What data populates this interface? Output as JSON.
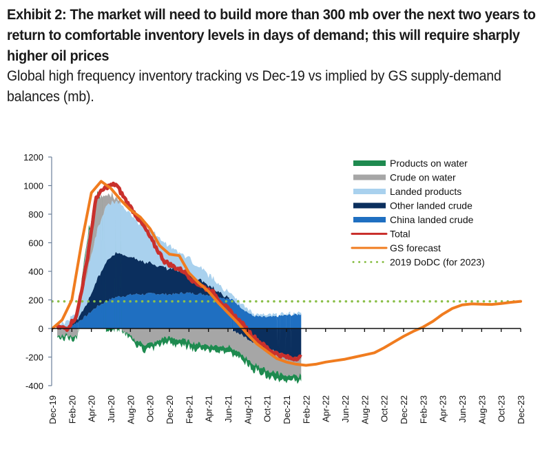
{
  "title": "Exhibit 2: The market will need to build more than 300 mb over the next two years to return to comfortable inventory levels in days of demand; this will require sharply higher oil prices",
  "subtitle": "Global high frequency inventory tracking vs Dec-19 vs implied by GS supply-demand balances (mb).",
  "chart_data": {
    "type": "area",
    "title": "Global high frequency inventory tracking vs Dec-19 vs implied by GS supply-demand balances (mb)",
    "xlabel": "",
    "ylabel": "mb",
    "ylim": [
      -400,
      1200
    ],
    "yticks": [
      -400,
      -200,
      0,
      200,
      400,
      600,
      800,
      1000,
      1200
    ],
    "grid": false,
    "legend_position": "top-right",
    "x_tick_labels": [
      "Dec-19",
      "Feb-20",
      "Apr-20",
      "Jun-20",
      "Aug-20",
      "Oct-20",
      "Dec-20",
      "Feb-21",
      "Apr-21",
      "Jun-21",
      "Aug-21",
      "Oct-21",
      "Dec-21",
      "Feb-22",
      "Apr-22",
      "Jun-22",
      "Aug-22",
      "Oct-22",
      "Dec-22",
      "Feb-23",
      "Apr-23",
      "Jun-23",
      "Aug-23",
      "Oct-23",
      "Dec-23"
    ],
    "tracking_months": [
      "Dec-19",
      "Jan-20",
      "Feb-20",
      "Mar-20",
      "Apr-20",
      "May-20",
      "Jun-20",
      "Jul-20",
      "Aug-20",
      "Sep-20",
      "Oct-20",
      "Nov-20",
      "Dec-20",
      "Jan-21",
      "Feb-21",
      "Mar-21",
      "Apr-21",
      "May-21",
      "Jun-21",
      "Jul-21",
      "Aug-21",
      "Sep-21",
      "Oct-21",
      "Nov-21",
      "Dec-21",
      "Jan-22"
    ],
    "stacked_series": [
      {
        "name": "China landed crude",
        "color": "#1f6fc1",
        "values": [
          0,
          10,
          40,
          90,
          150,
          190,
          220,
          230,
          240,
          240,
          245,
          240,
          240,
          250,
          245,
          240,
          230,
          215,
          200,
          140,
          90,
          80,
          80,
          90,
          95,
          100
        ]
      },
      {
        "name": "Other landed crude",
        "color": "#0b2f5e",
        "values": [
          0,
          5,
          20,
          80,
          180,
          280,
          310,
          280,
          250,
          220,
          200,
          190,
          170,
          150,
          120,
          90,
          60,
          20,
          -10,
          -50,
          -90,
          -120,
          -150,
          -180,
          -200,
          -210
        ]
      },
      {
        "name": "Landed products",
        "color": "#a9d1ee",
        "values": [
          30,
          40,
          60,
          200,
          330,
          400,
          360,
          330,
          280,
          240,
          220,
          170,
          140,
          120,
          90,
          80,
          70,
          50,
          40,
          30,
          20,
          10,
          10,
          10,
          10,
          10
        ]
      },
      {
        "name": "Crude on water",
        "color": "#a6a6a6",
        "values": [
          -50,
          -40,
          -60,
          220,
          250,
          80,
          30,
          -30,
          -80,
          -110,
          -100,
          -60,
          -70,
          -80,
          -100,
          -110,
          -120,
          -120,
          -130,
          -140,
          -150,
          -150,
          -150,
          -140,
          -130,
          -120
        ]
      },
      {
        "name": "Products on water",
        "color": "#1e8a4f",
        "values": [
          -20,
          -20,
          -20,
          20,
          20,
          -10,
          -10,
          -20,
          -30,
          -40,
          -40,
          -40,
          -40,
          -40,
          -40,
          -40,
          -40,
          -40,
          -40,
          -40,
          -40,
          -40,
          -40,
          -40,
          -40,
          -40
        ]
      }
    ],
    "line_series": [
      {
        "name": "Total",
        "color": "#c9302c",
        "x": [
          "Dec-19",
          "Jan-20",
          "Feb-20",
          "Mar-20",
          "Apr-20",
          "May-20",
          "Jun-20",
          "Jul-20",
          "Aug-20",
          "Sep-20",
          "Oct-20",
          "Nov-20",
          "Dec-20",
          "Jan-21",
          "Feb-21",
          "Mar-21",
          "Apr-21",
          "May-21",
          "Jun-21",
          "Jul-21",
          "Aug-21",
          "Sep-21",
          "Oct-21",
          "Nov-21",
          "Dec-21",
          "Jan-22"
        ],
        "values": [
          10,
          0,
          90,
          450,
          920,
          990,
          1010,
          900,
          800,
          700,
          580,
          470,
          430,
          400,
          330,
          290,
          250,
          170,
          100,
          30,
          -50,
          -110,
          -160,
          -190,
          -210,
          -200
        ]
      },
      {
        "name": "GS forecast",
        "color": "#f07c1f",
        "x": [
          "Dec-19",
          "Jan-20",
          "Feb-20",
          "Mar-20",
          "Apr-20",
          "May-20",
          "Jun-20",
          "Jul-20",
          "Aug-20",
          "Sep-20",
          "Oct-20",
          "Nov-20",
          "Dec-20",
          "Jan-21",
          "Feb-21",
          "Mar-21",
          "Apr-21",
          "May-21",
          "Jun-21",
          "Jul-21",
          "Aug-21",
          "Sep-21",
          "Oct-21",
          "Nov-21",
          "Dec-21",
          "Jan-22",
          "Feb-22",
          "Mar-22",
          "Apr-22",
          "May-22",
          "Jun-22",
          "Jul-22",
          "Aug-22",
          "Sep-22",
          "Oct-22",
          "Nov-22",
          "Dec-22",
          "Jan-23",
          "Feb-23",
          "Mar-23",
          "Apr-23",
          "May-23",
          "Jun-23",
          "Jul-23",
          "Aug-23",
          "Sep-23",
          "Oct-23",
          "Nov-23",
          "Dec-23"
        ],
        "values": [
          0,
          60,
          200,
          600,
          950,
          1030,
          980,
          900,
          830,
          780,
          700,
          580,
          520,
          510,
          390,
          320,
          260,
          180,
          110,
          40,
          -40,
          -110,
          -160,
          -210,
          -235,
          -250,
          -258,
          -250,
          -235,
          -225,
          -215,
          -200,
          -185,
          -170,
          -135,
          -95,
          -55,
          -20,
          10,
          50,
          100,
          140,
          165,
          172,
          170,
          168,
          175,
          183,
          190
        ]
      },
      {
        "name": "2019 DoDC  (for 2023)",
        "color": "#8cc04b",
        "style": "dotted",
        "values": [
          190,
          190
        ]
      }
    ]
  },
  "legend": [
    {
      "label": "Products on water",
      "kind": "band",
      "color": "#1e8a4f"
    },
    {
      "label": "Crude on water",
      "kind": "band",
      "color": "#a6a6a6"
    },
    {
      "label": "Landed products",
      "kind": "band",
      "color": "#a9d1ee"
    },
    {
      "label": "Other landed crude",
      "kind": "band",
      "color": "#0b2f5e"
    },
    {
      "label": "China landed crude",
      "kind": "band",
      "color": "#1f6fc1"
    },
    {
      "label": "Total",
      "kind": "line",
      "color": "#c9302c"
    },
    {
      "label": "GS forecast",
      "kind": "line",
      "color": "#f07c1f"
    },
    {
      "label": "2019 DoDC  (for 2023)",
      "kind": "dots",
      "color": "#8cc04b"
    }
  ]
}
